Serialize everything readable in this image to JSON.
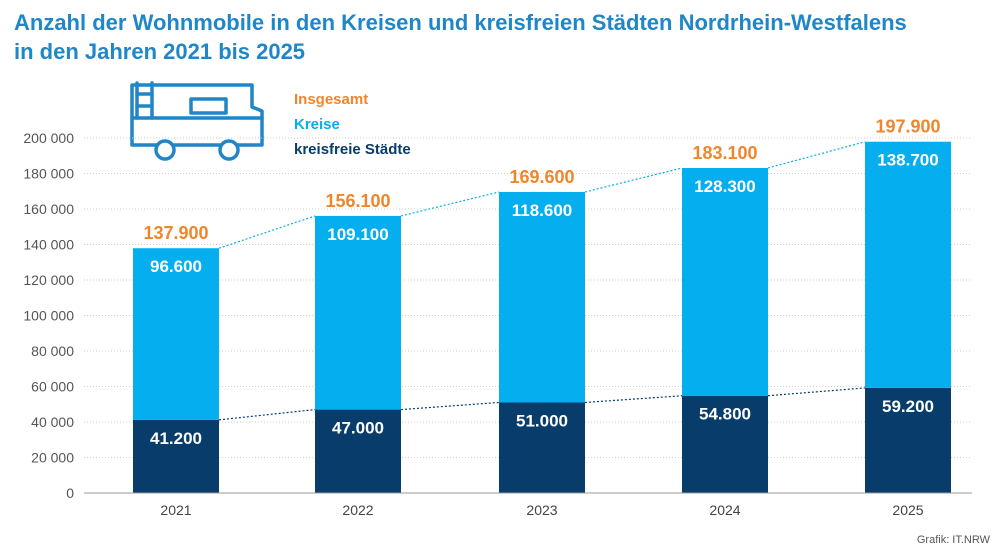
{
  "title_line1": "Anzahl der Wohnmobile in den Kreisen und kreisfreien Städten Nordrhein-Westfalens",
  "title_line2": "in den Jahren 2021 bis 2025",
  "source": "Grafik: IT.NRW",
  "icon": "camper-van-icon",
  "colors": {
    "title": "#1f86c8",
    "total": "#f0862b",
    "kreise": "#05aeee",
    "staedte": "#083d6b",
    "axis_text": "#555555",
    "grid": "#cfcfcf"
  },
  "chart_data": {
    "type": "bar",
    "stacked": true,
    "categories": [
      "2021",
      "2022",
      "2023",
      "2024",
      "2025"
    ],
    "series": [
      {
        "name": "kreisfreie Städte",
        "values": [
          41200,
          47000,
          51000,
          54800,
          59200
        ],
        "labels": [
          "41.200",
          "47.000",
          "51.000",
          "54.800",
          "59.200"
        ]
      },
      {
        "name": "Kreise",
        "values": [
          96600,
          109100,
          118600,
          128300,
          138700
        ],
        "labels": [
          "96.600",
          "109.100",
          "118.600",
          "128.300",
          "138.700"
        ]
      }
    ],
    "totals": {
      "name": "Insgesamt",
      "values": [
        137900,
        156100,
        169600,
        183100,
        197900
      ],
      "labels": [
        "137.900",
        "156.100",
        "169.600",
        "183.100",
        "197.900"
      ]
    },
    "ylim": [
      0,
      200000
    ],
    "yticks": [
      0,
      20000,
      40000,
      60000,
      80000,
      100000,
      120000,
      140000,
      160000,
      180000,
      200000
    ],
    "ytick_labels": [
      "0",
      "20 000",
      "40 000",
      "60 000",
      "80 000",
      "100 000",
      "120 000",
      "140 000",
      "160 000",
      "180 000",
      "200 000"
    ],
    "legend": [
      "Insgesamt",
      "Kreise",
      "kreisfreie Städte"
    ],
    "legend_position": "top-left",
    "grid": true
  }
}
